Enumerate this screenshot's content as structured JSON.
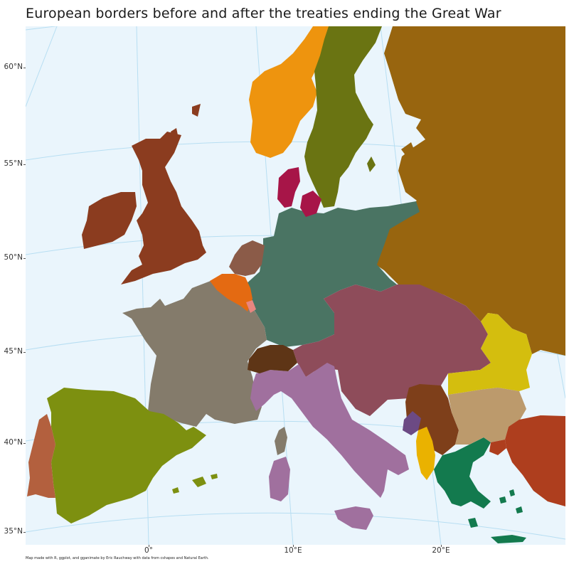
{
  "title": "European borders before and after the treaties ending the Great War",
  "caption": "Map made with R, ggplot, and gganimate by Eric Rauchway with data from cshapes and Natural Earth.",
  "lat_labels": [
    "60°N",
    "55°N",
    "50°N",
    "45°N",
    "40°N",
    "35°N"
  ],
  "lon_labels": [
    "0°",
    "10°E",
    "20°E"
  ],
  "colors": {
    "ocean": "#eaf5fc",
    "graticule": "#b7def2",
    "russia": "#98650f",
    "germany": "#4a7463",
    "austria_hungary": "#8e4c5a",
    "france": "#847b6b",
    "italy": "#a0709e",
    "spain": "#7d9010",
    "portugal": "#b3603e",
    "united_kingdom": "#8b3c1f",
    "norway": "#ee940e",
    "sweden": "#6a7412",
    "denmark": "#a71548",
    "netherlands": "#8b5b48",
    "belgium": "#e46a12",
    "luxembourg": "#e88680",
    "switzerland": "#5e3516",
    "serbia": "#7e3f1a",
    "montenegro": "#6c4a84",
    "albania": "#eab200",
    "greece": "#137a4e",
    "romania": "#d4be0e",
    "bulgaria": "#bc9a6c",
    "ottoman_empire": "#ae3e1e"
  }
}
